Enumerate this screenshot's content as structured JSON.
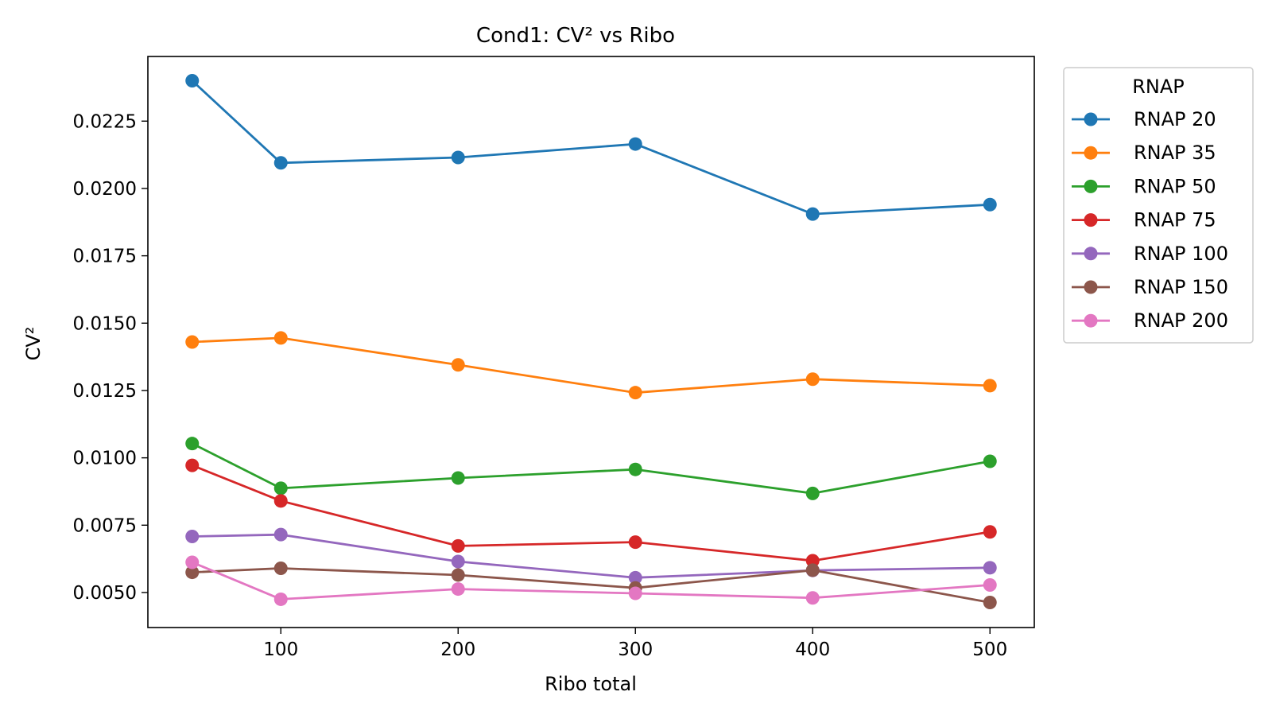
{
  "chart_data": {
    "type": "line",
    "title": "Cond1: CV² vs Ribo",
    "xlabel": "Ribo total",
    "ylabel": "CV²",
    "x": [
      50,
      100,
      200,
      300,
      400,
      500
    ],
    "xlim": [
      25,
      525
    ],
    "ylim": [
      0.0037,
      0.0249
    ],
    "x_ticks": [
      100,
      200,
      300,
      400,
      500
    ],
    "x_tick_labels": [
      "100",
      "200",
      "300",
      "400",
      "500"
    ],
    "y_ticks": [
      0.005,
      0.0075,
      0.01,
      0.0125,
      0.015,
      0.0175,
      0.02,
      0.0225
    ],
    "y_tick_labels": [
      "0.0050",
      "0.0075",
      "0.0100",
      "0.0125",
      "0.0150",
      "0.0175",
      "0.0200",
      "0.0225"
    ],
    "grid": false,
    "legend_title": "RNAP",
    "legend_position": "outside upper right",
    "series": [
      {
        "name": "RNAP 20",
        "color": "#1f77b4",
        "values": [
          0.024,
          0.02095,
          0.02115,
          0.02165,
          0.01905,
          0.0194
        ]
      },
      {
        "name": "RNAP 35",
        "color": "#ff7f0e",
        "values": [
          0.0143,
          0.01445,
          0.01345,
          0.01242,
          0.01292,
          0.01268
        ]
      },
      {
        "name": "RNAP 50",
        "color": "#2ca02c",
        "values": [
          0.01053,
          0.00887,
          0.00925,
          0.00957,
          0.00868,
          0.00987
        ]
      },
      {
        "name": "RNAP 75",
        "color": "#d62728",
        "values": [
          0.00972,
          0.0084,
          0.00673,
          0.00687,
          0.00618,
          0.00725
        ]
      },
      {
        "name": "RNAP 100",
        "color": "#9467bd",
        "values": [
          0.00708,
          0.00715,
          0.00615,
          0.00555,
          0.00582,
          0.00592
        ]
      },
      {
        "name": "RNAP 150",
        "color": "#8c564b",
        "values": [
          0.00575,
          0.0059,
          0.00565,
          0.00517,
          0.00583,
          0.00463
        ]
      },
      {
        "name": "RNAP 200",
        "color": "#e377c2",
        "values": [
          0.00612,
          0.00475,
          0.00513,
          0.00497,
          0.0048,
          0.00528
        ]
      }
    ]
  }
}
